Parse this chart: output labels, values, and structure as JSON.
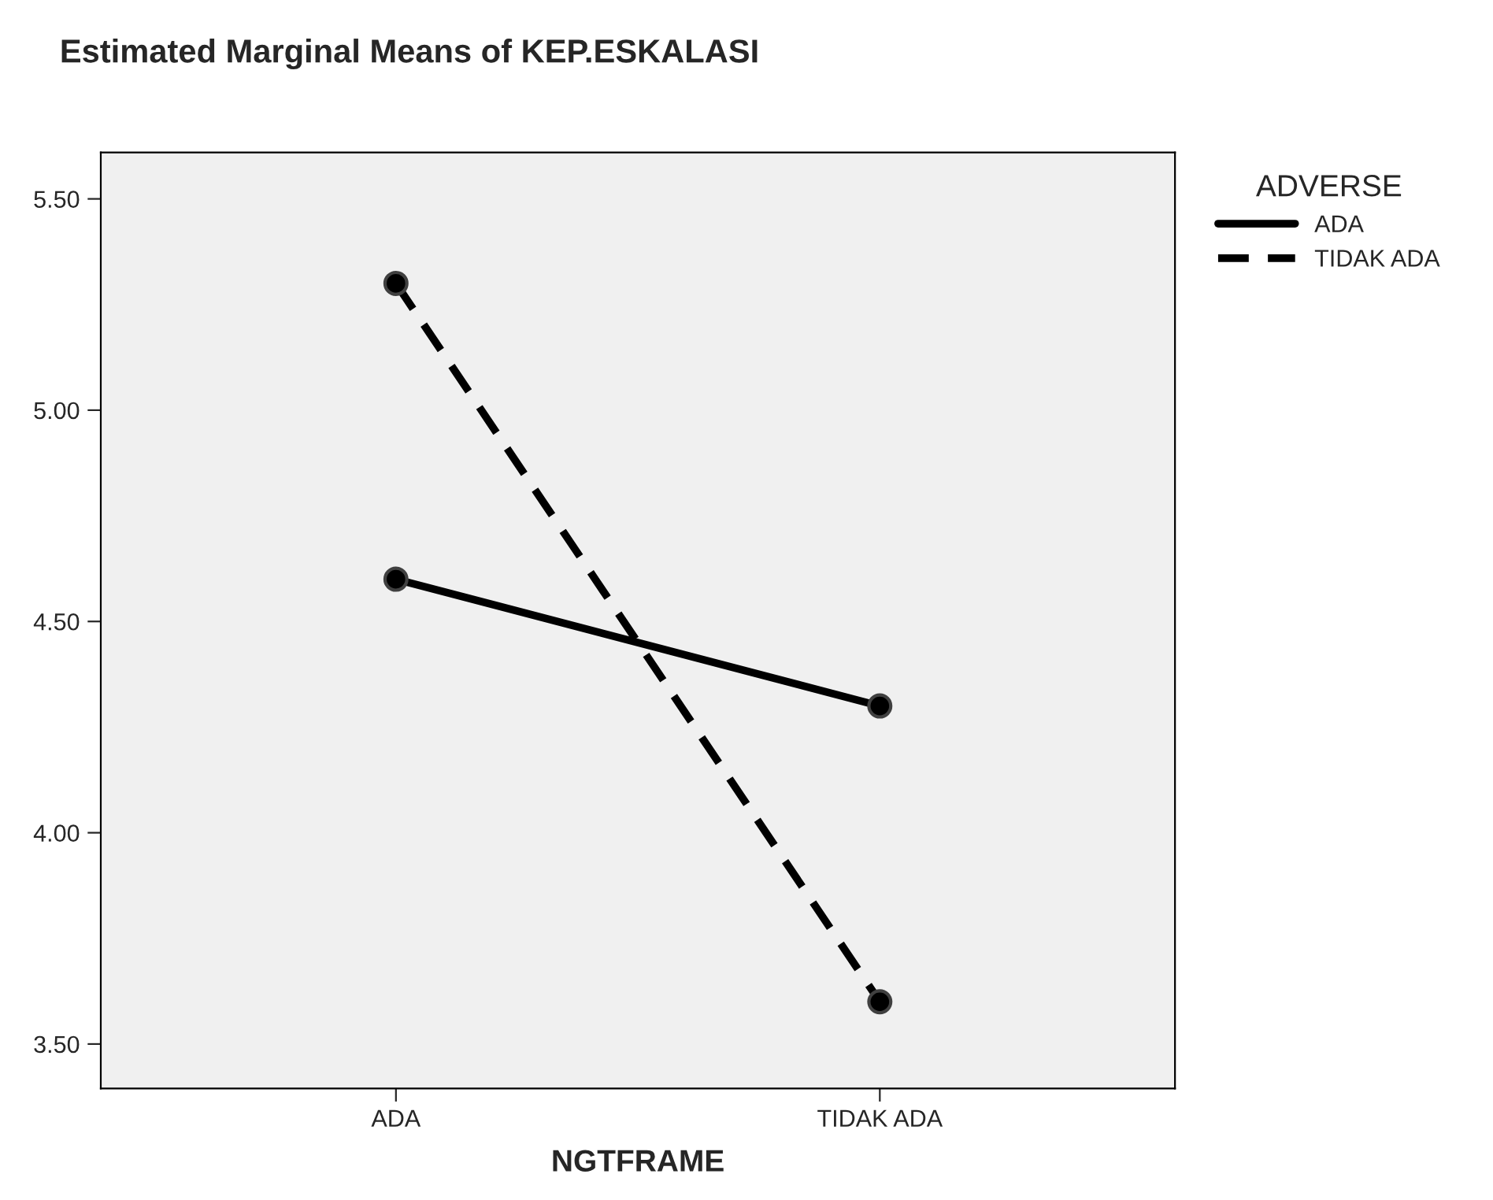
{
  "chart_data": {
    "type": "line",
    "title": "Estimated Marginal Means of KEP.ESKALASI",
    "xlabel": "NGTFRAME",
    "legend_title": "ADVERSE",
    "categories": [
      "ADA",
      "TIDAK ADA"
    ],
    "series": [
      {
        "name": "ADA",
        "color": "#000000",
        "values": [
          4.6,
          4.3
        ],
        "line_style": "solid"
      },
      {
        "name": "TIDAK ADA",
        "color": "#000000",
        "values": [
          5.3,
          3.6
        ],
        "line_style": "dashed"
      }
    ],
    "ylim": [
      3.395,
      5.61
    ],
    "yticks": [
      {
        "value": 3.5,
        "label": "3.50"
      },
      {
        "value": 4.0,
        "label": "4.00"
      },
      {
        "value": 4.5,
        "label": "4.50"
      },
      {
        "value": 5.0,
        "label": "5.00"
      },
      {
        "value": 5.5,
        "label": "5.50"
      }
    ],
    "marker": "circle",
    "grid": false,
    "legend": "top right"
  }
}
